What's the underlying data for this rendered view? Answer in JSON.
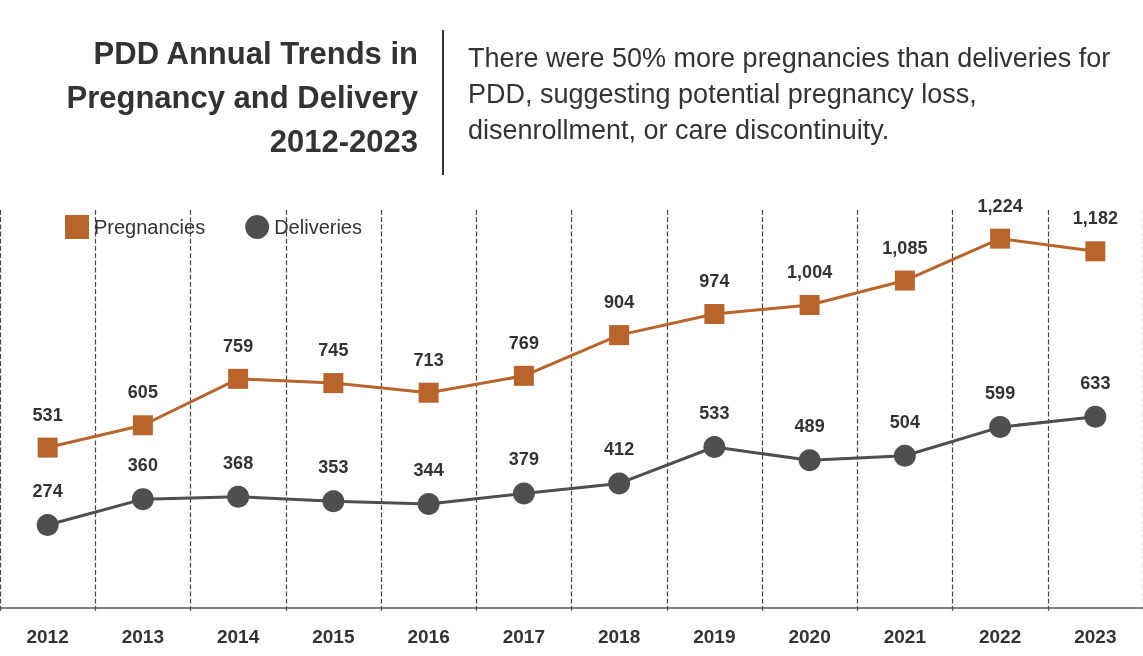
{
  "chart_data": {
    "type": "line",
    "title": "PDD Annual Trends in Pregnancy and Delivery 2012-2023",
    "subtitle": "There were 50% more pregnancies than deliveries for PDD, suggesting potential pregnancy loss, disenrollment, or care discontinuity.",
    "categories": [
      "2012",
      "2013",
      "2014",
      "2015",
      "2016",
      "2017",
      "2018",
      "2019",
      "2020",
      "2021",
      "2022",
      "2023"
    ],
    "series": [
      {
        "name": "Pregnancies",
        "color": "#b8642b",
        "marker": "square",
        "values": [
          531,
          605,
          759,
          745,
          713,
          769,
          904,
          974,
          1004,
          1085,
          1224,
          1182
        ],
        "value_labels": [
          "531",
          "605",
          "759",
          "745",
          "713",
          "769",
          "904",
          "974",
          "1,004",
          "1,085",
          "1,224",
          "1,182"
        ]
      },
      {
        "name": "Deliveries",
        "color": "#4f4f4f",
        "marker": "circle",
        "values": [
          274,
          360,
          368,
          353,
          344,
          379,
          412,
          533,
          489,
          504,
          599,
          633
        ],
        "value_labels": [
          "274",
          "360",
          "368",
          "353",
          "344",
          "379",
          "412",
          "533",
          "489",
          "504",
          "599",
          "633"
        ]
      }
    ],
    "legend": "top left",
    "grid": "x",
    "line_style": "solid",
    "tick_labels": "x"
  }
}
